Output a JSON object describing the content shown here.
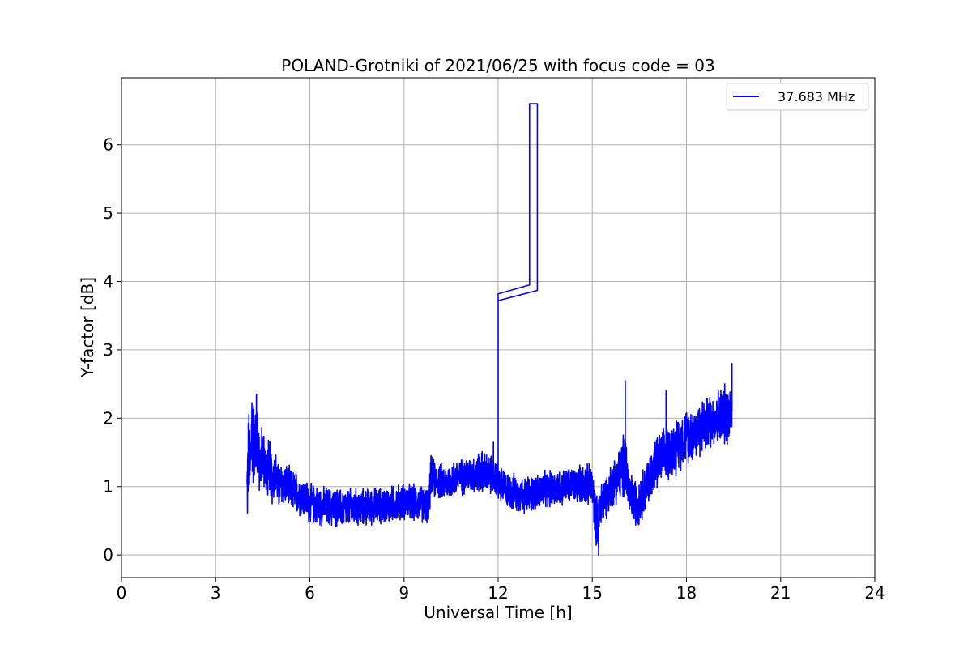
{
  "chart_data": {
    "type": "line",
    "title": "POLAND-Grotniki of 2021/06/25 with focus code = 03",
    "xlabel": "Universal Time [h]",
    "ylabel": "Y-factor [dB]",
    "xlim": [
      0,
      24
    ],
    "ylim": [
      -0.33,
      6.98
    ],
    "xticks": [
      0,
      3,
      6,
      9,
      12,
      15,
      18,
      21,
      24
    ],
    "yticks": [
      0,
      1,
      2,
      3,
      4,
      5,
      6
    ],
    "grid": true,
    "legend_position": "top-right",
    "series": [
      {
        "name": "37.683 MHz",
        "color": "#0000ff",
        "x": [
          4.0,
          4.05,
          4.1,
          4.15,
          4.2,
          4.25,
          4.3,
          4.35,
          4.4,
          4.5,
          4.6,
          4.7,
          4.8,
          4.9,
          5.0,
          5.2,
          5.4,
          5.6,
          5.8,
          6.0,
          6.3,
          6.6,
          7.0,
          7.4,
          7.8,
          8.2,
          8.6,
          9.0,
          9.4,
          9.8,
          9.85,
          10.0,
          10.3,
          10.6,
          10.9,
          11.2,
          11.5,
          11.8,
          12.0,
          12.0,
          13.0,
          13.0,
          13.25,
          13.25,
          12.0,
          12.0,
          12.3,
          12.6,
          12.9,
          13.2,
          13.5,
          13.8,
          14.1,
          14.4,
          14.7,
          15.0,
          15.1,
          15.2,
          15.3,
          15.5,
          15.7,
          15.9,
          16.05,
          16.2,
          16.4,
          16.6,
          16.8,
          17.0,
          17.2,
          17.4,
          17.6,
          17.8,
          18.0,
          18.3,
          18.6,
          18.9,
          19.2,
          19.45
        ],
        "y": [
          0.9,
          1.5,
          1.2,
          1.9,
          1.6,
          1.8,
          1.4,
          1.7,
          1.3,
          1.5,
          1.2,
          1.35,
          1.1,
          1.2,
          1.0,
          1.05,
          0.95,
          0.9,
          0.85,
          0.75,
          0.72,
          0.7,
          0.68,
          0.68,
          0.7,
          0.72,
          0.74,
          0.78,
          0.76,
          0.72,
          1.15,
          1.1,
          1.05,
          1.12,
          1.15,
          1.18,
          1.22,
          1.15,
          1.1,
          3.82,
          3.95,
          6.6,
          6.6,
          3.87,
          3.72,
          1.05,
          0.95,
          0.9,
          0.88,
          0.92,
          0.95,
          0.98,
          1.0,
          1.02,
          1.05,
          1.0,
          0.55,
          0.45,
          0.8,
          0.9,
          1.1,
          1.2,
          1.35,
          0.85,
          0.75,
          0.9,
          1.1,
          1.3,
          1.4,
          1.5,
          1.55,
          1.65,
          1.75,
          1.8,
          1.9,
          2.0,
          2.05,
          2.1
        ],
        "noise_amplitude": [
          0.7,
          0.8,
          0.7,
          0.8,
          0.7,
          0.7,
          0.6,
          0.6,
          0.55,
          0.5,
          0.45,
          0.45,
          0.4,
          0.4,
          0.38,
          0.35,
          0.35,
          0.35,
          0.33,
          0.33,
          0.32,
          0.32,
          0.32,
          0.32,
          0.3,
          0.3,
          0.3,
          0.3,
          0.3,
          0.3,
          0.35,
          0.3,
          0.3,
          0.3,
          0.3,
          0.3,
          0.35,
          0.32,
          0.3,
          0,
          0,
          0,
          0,
          0,
          0,
          0.3,
          0.3,
          0.3,
          0.3,
          0.3,
          0.3,
          0.3,
          0.3,
          0.3,
          0.32,
          0.35,
          0.4,
          0.45,
          0.4,
          0.35,
          0.4,
          0.45,
          0.6,
          0.4,
          0.4,
          0.4,
          0.4,
          0.45,
          0.45,
          0.45,
          0.45,
          0.45,
          0.45,
          0.45,
          0.45,
          0.45,
          0.5,
          0.5
        ],
        "peaks": [
          {
            "x": 4.3,
            "y": 2.35
          },
          {
            "x": 16.05,
            "y": 2.55
          },
          {
            "x": 17.35,
            "y": 2.4
          },
          {
            "x": 19.45,
            "y": 2.8
          },
          {
            "x": 15.2,
            "y": 0.0
          },
          {
            "x": 11.85,
            "y": 1.65
          }
        ]
      }
    ]
  }
}
